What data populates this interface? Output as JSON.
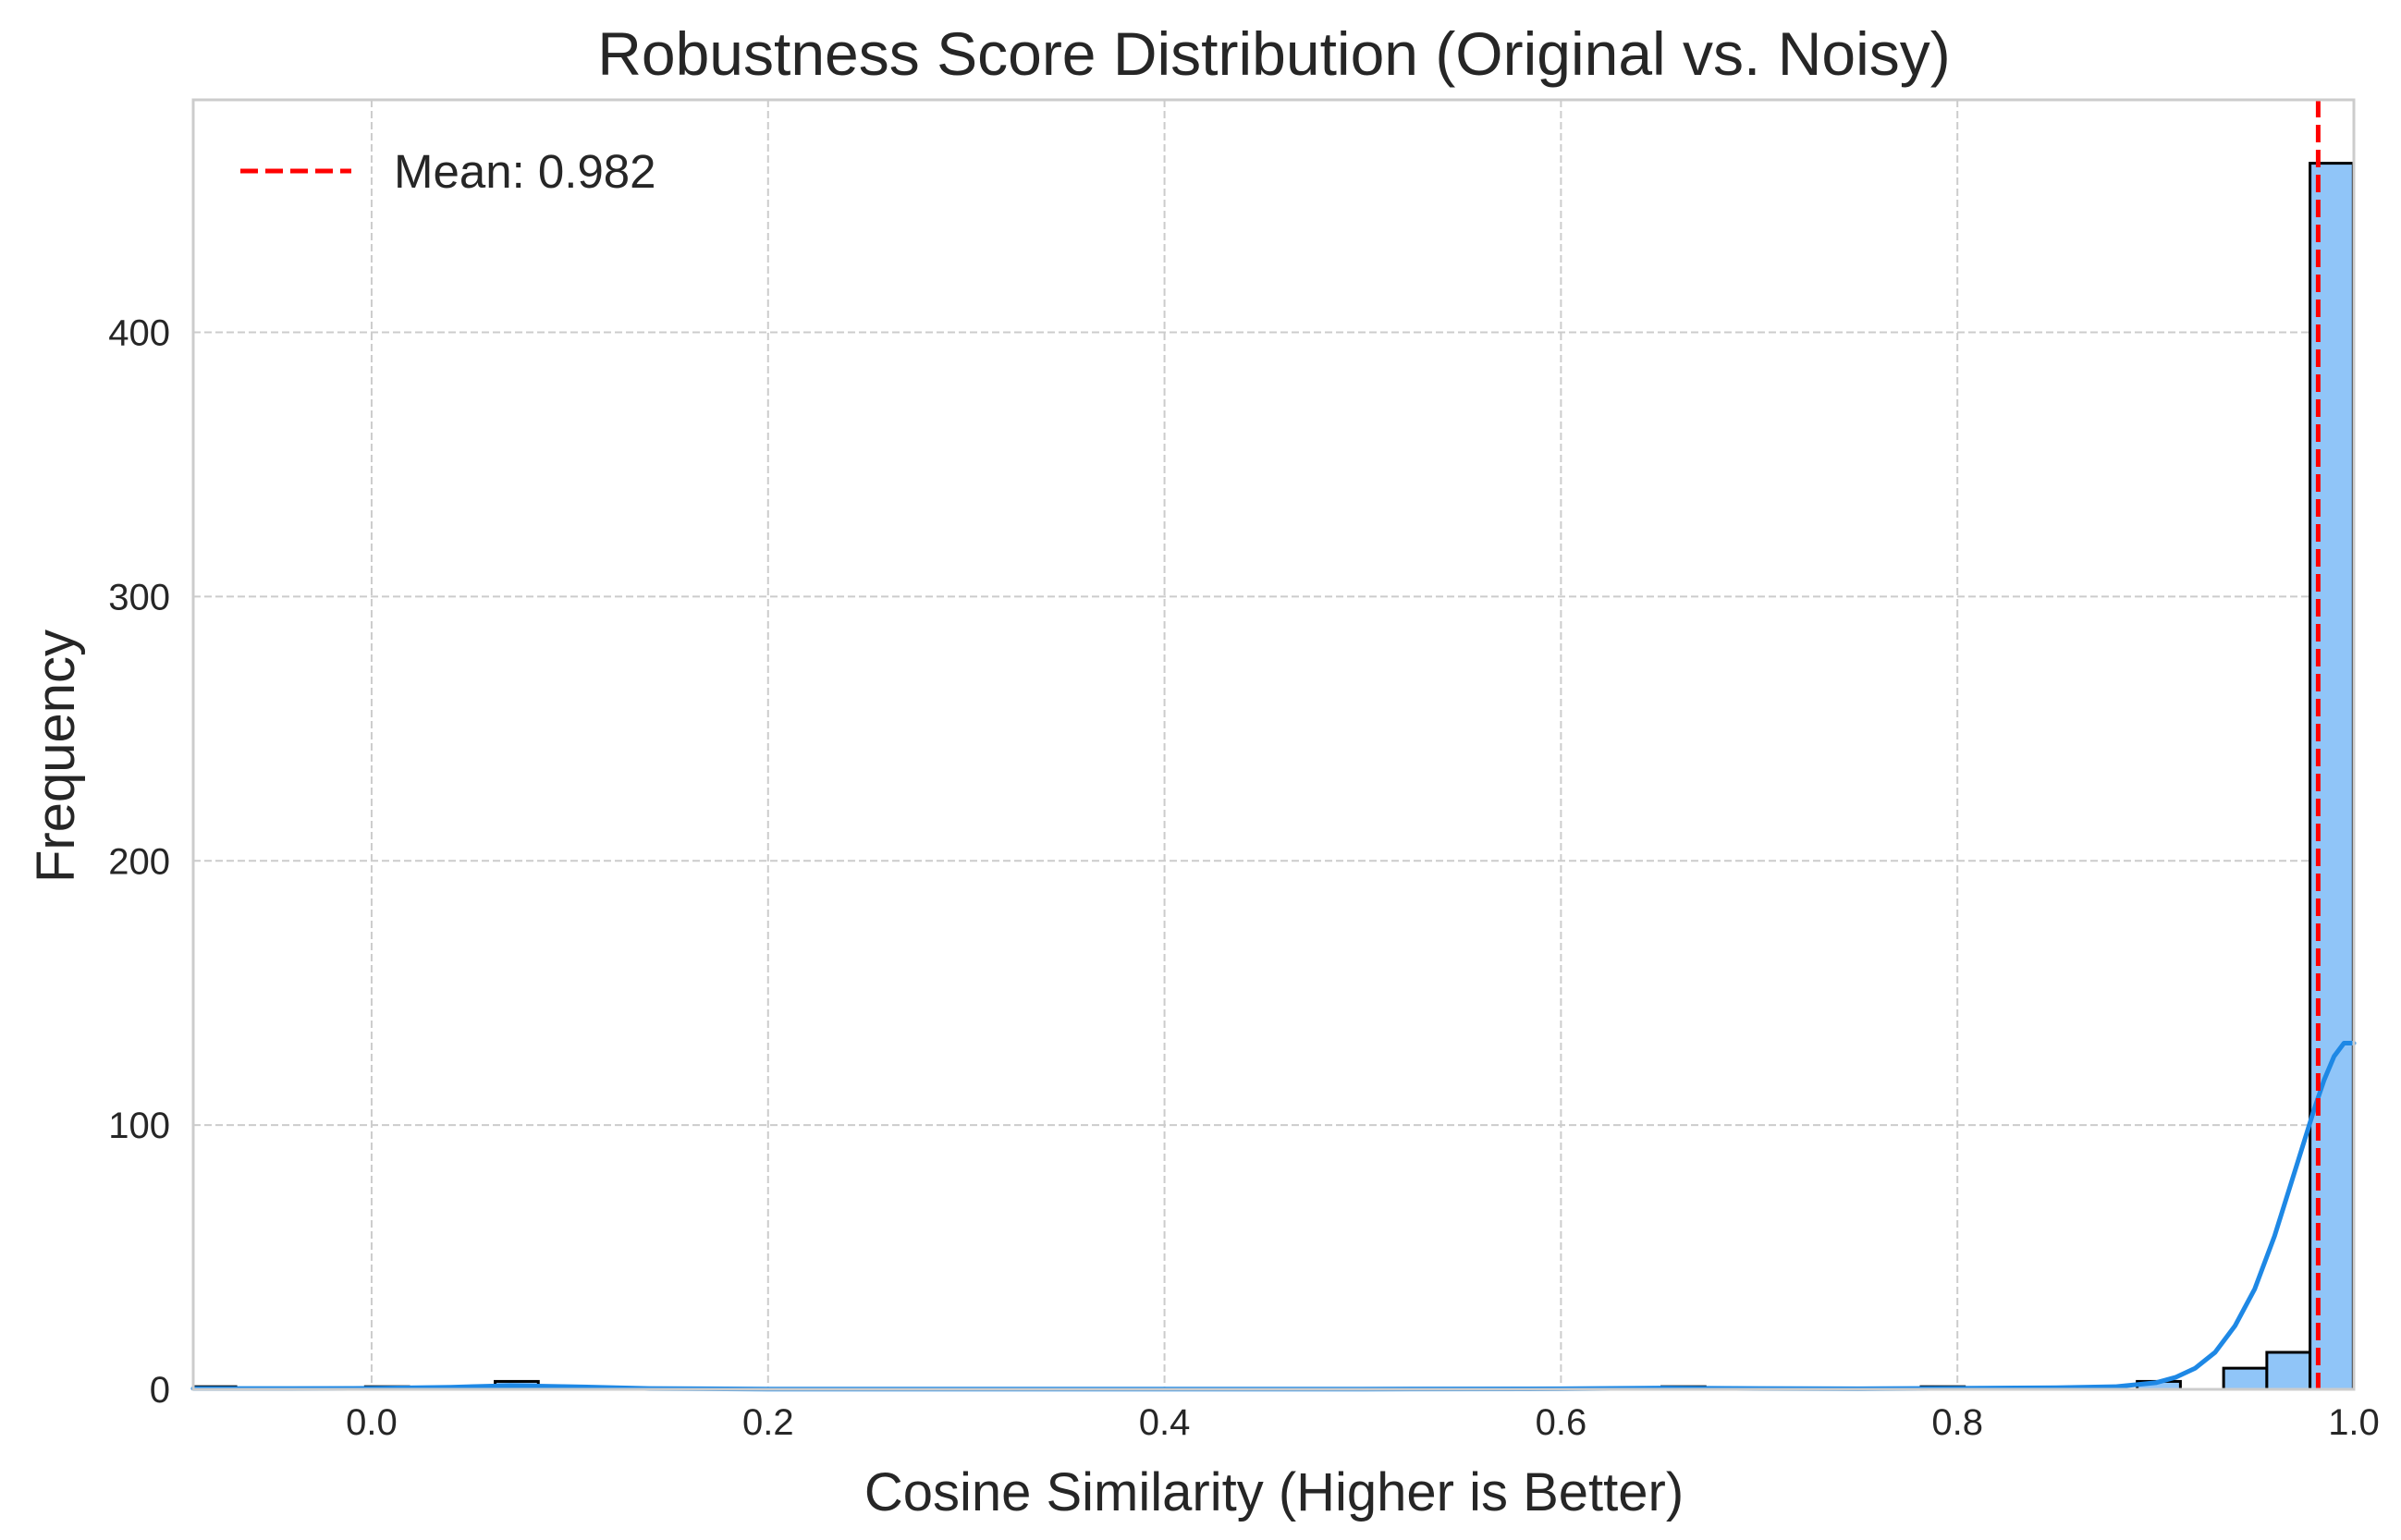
{
  "chart_data": {
    "type": "histogram",
    "title": "Robustness Score Distribution (Original vs. Noisy)",
    "xlabel": "Cosine Similarity (Higher is Better)",
    "ylabel": "Frequency",
    "xlim": [
      -0.09,
      1.0
    ],
    "ylim": [
      0,
      488
    ],
    "xticks": [
      0.0,
      0.2,
      0.4,
      0.6,
      0.8,
      1.0
    ],
    "xtick_labels": [
      "0.0",
      "0.2",
      "0.4",
      "0.6",
      "0.8",
      "1.0"
    ],
    "yticks": [
      0,
      100,
      200,
      300,
      400
    ],
    "ytick_labels": [
      "0",
      "100",
      "200",
      "300",
      "400"
    ],
    "grid": true,
    "bin_width": 0.0218,
    "bars": [
      {
        "x0": -0.0903,
        "count": 1
      },
      {
        "x0": -0.0031,
        "count": 1
      },
      {
        "x0": 0.0623,
        "count": 3
      },
      {
        "x0": 0.6509,
        "count": 1
      },
      {
        "x0": 0.7817,
        "count": 1
      },
      {
        "x0": 0.8907,
        "count": 3
      },
      {
        "x0": 0.9343,
        "count": 8
      },
      {
        "x0": 0.9561,
        "count": 14
      },
      {
        "x0": 0.9779,
        "count": 464
      }
    ],
    "kde": {
      "x": [
        -0.09,
        -0.04,
        0.0,
        0.04,
        0.07,
        0.1,
        0.14,
        0.2,
        0.3,
        0.4,
        0.5,
        0.6,
        0.65,
        0.7,
        0.75,
        0.8,
        0.85,
        0.88,
        0.9,
        0.91,
        0.92,
        0.93,
        0.94,
        0.95,
        0.96,
        0.97,
        0.98,
        0.985,
        0.99,
        0.995,
        1.0
      ],
      "y": [
        0.3,
        0.3,
        0.4,
        0.8,
        1.4,
        1.0,
        0.3,
        0.1,
        0.1,
        0.1,
        0.1,
        0.2,
        0.5,
        0.3,
        0.2,
        0.4,
        0.6,
        1.0,
        2.5,
        4.5,
        8,
        14,
        24,
        38,
        58,
        82,
        106,
        117,
        126,
        131,
        131
      ]
    },
    "mean_line": {
      "x": 0.982,
      "label": "Mean: 0.982"
    },
    "legend_position": "upper-left",
    "colors": {
      "bar_fill": "#90c5f8",
      "bar_edge": "#000000",
      "kde": "#1e88e5",
      "mean": "#ff0000",
      "grid": "#cccccc",
      "spine": "#cccccc",
      "text": "#262626"
    }
  }
}
